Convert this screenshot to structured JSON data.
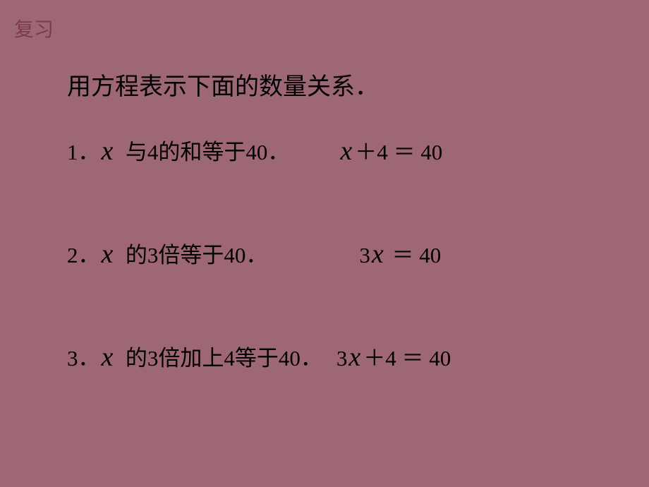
{
  "corner_label": "复习",
  "title": "用方程表示下面的数量关系．",
  "problems": {
    "p1": {
      "prefix": "1．",
      "mid": "与4的和等于40．",
      "ans_before": "",
      "ans_after": "＋4 ＝ 40"
    },
    "p2": {
      "prefix": "2．",
      "mid": "的3倍等于40．",
      "ans_before": "3",
      "ans_after": " ＝ 40"
    },
    "p3": {
      "prefix": "3．",
      "mid": "的3倍加上4等于40．",
      "ans_before": "3",
      "ans_after": "＋4 ＝ 40"
    }
  },
  "x_char": "x",
  "colors": {
    "background": "#9e6776",
    "text": "#000000",
    "corner": "#7c3a50"
  },
  "fonts": {
    "body_size": 31,
    "title_size": 34,
    "x_size": 38,
    "corner_size": 28
  }
}
